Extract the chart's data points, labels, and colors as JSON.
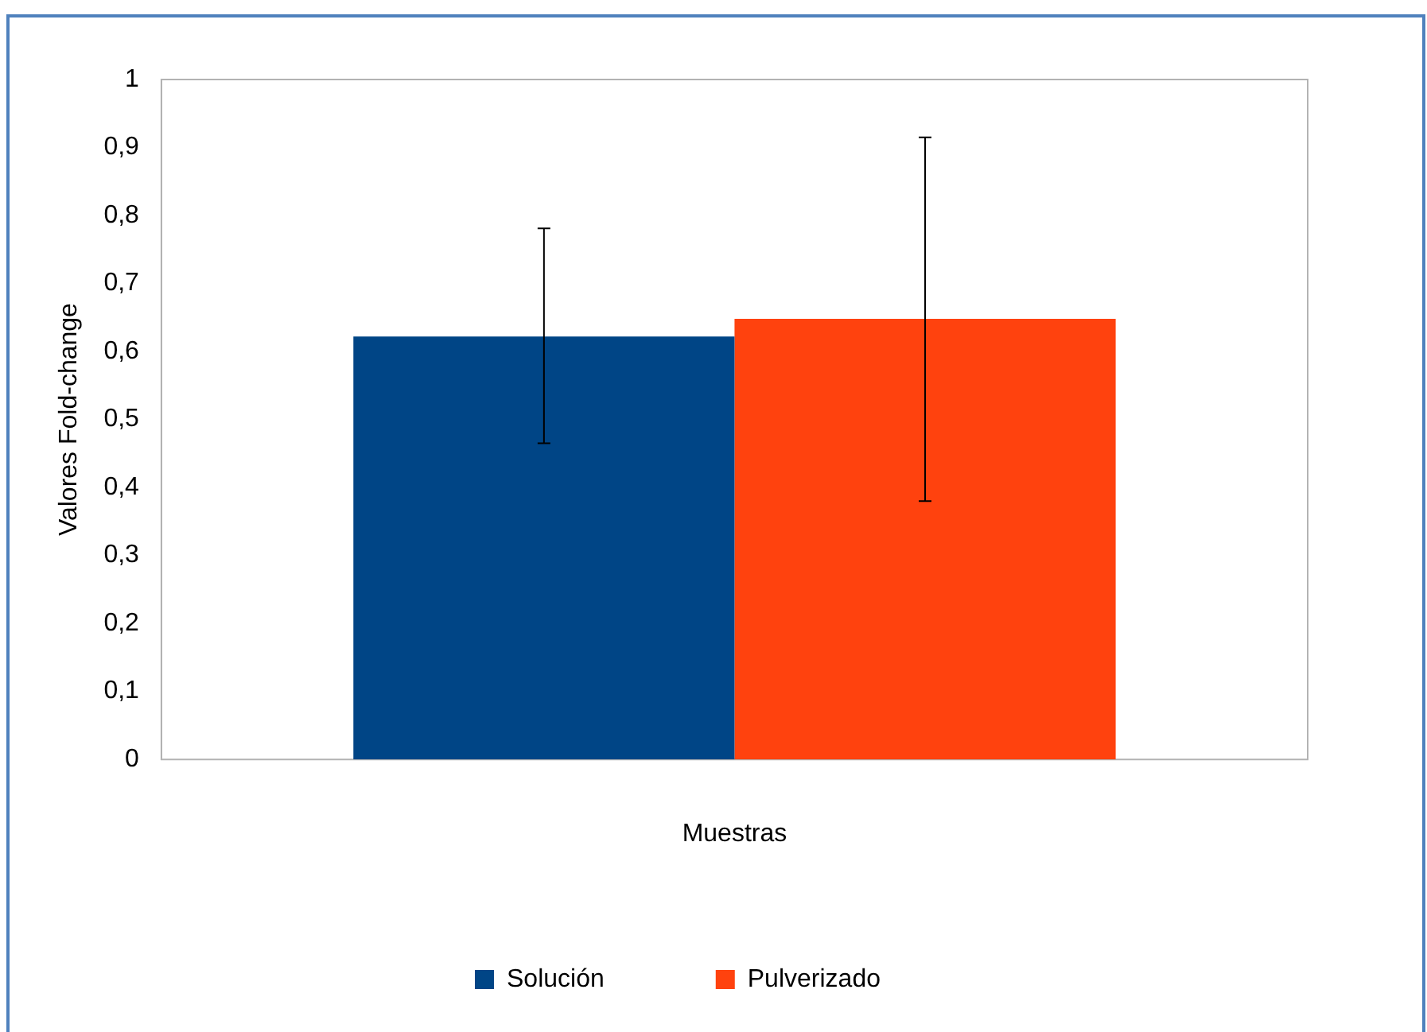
{
  "chart_data": {
    "type": "bar",
    "xlabel": "Muestras",
    "ylabel": "Valores Fold-change",
    "categories": [
      null
    ],
    "series": [
      {
        "name": "Solución",
        "color": "#004586",
        "values": [
          0.622
        ],
        "errors": [
          [
            0.465,
            0.781
          ]
        ]
      },
      {
        "name": "Pulverizado",
        "color": "#ff420e",
        "values": [
          0.648
        ],
        "errors": [
          [
            0.38,
            0.915
          ]
        ]
      }
    ],
    "ylim": [
      0,
      1
    ],
    "yticks": [
      0,
      {
        "value": 0.1,
        "label": "0,1"
      },
      {
        "value": 0.2,
        "label": "0,2"
      },
      {
        "value": 0.3,
        "label": "0,3"
      },
      {
        "value": 0.4,
        "label": "0,4"
      },
      {
        "value": 0.5,
        "label": "0,5"
      },
      {
        "value": 0.6,
        "label": "0,6"
      },
      {
        "value": 0.7,
        "label": "0,7"
      },
      {
        "value": 0.8,
        "label": "0,8"
      },
      {
        "value": 0.9,
        "label": "0,9"
      },
      1
    ],
    "grid": false,
    "legend": "bottom"
  }
}
